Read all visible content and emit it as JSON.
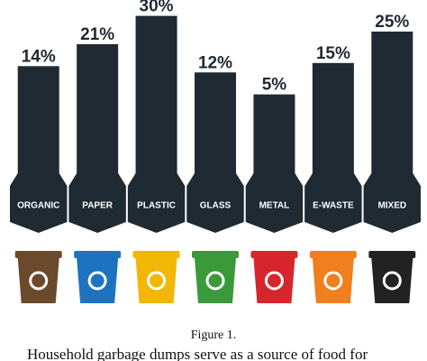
{
  "chart_data": {
    "type": "bar",
    "categories": [
      "ORGANIC",
      "PAPER",
      "PLASTIC",
      "GLASS",
      "METAL",
      "E-WASTE",
      "MIXED"
    ],
    "values": [
      14,
      21,
      30,
      12,
      5,
      15,
      25
    ],
    "value_labels": [
      "14%",
      "21%",
      "30%",
      "12%",
      "5%",
      "15%",
      "25%"
    ],
    "color": "#1f2a33",
    "bin_colors": [
      "#6b4a2b",
      "#1e73be",
      "#f2b705",
      "#3a9a3a",
      "#d7262b",
      "#f07f1e",
      "#222222"
    ]
  },
  "caption": "Figure 1.",
  "body_text": "Household garbage dumps serve as a source of food for"
}
